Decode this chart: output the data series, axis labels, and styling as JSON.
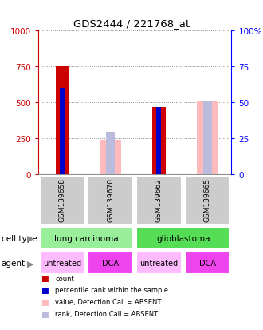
{
  "title": "GDS2444 / 221768_at",
  "samples": [
    "GSM139658",
    "GSM139670",
    "GSM139662",
    "GSM139665"
  ],
  "count_values": [
    750,
    null,
    470,
    null
  ],
  "percentile_values": [
    600,
    null,
    470,
    null
  ],
  "absent_value_values": [
    null,
    240,
    null,
    510
  ],
  "absent_rank_values": [
    null,
    295,
    null,
    510
  ],
  "ylim": [
    0,
    1000
  ],
  "yticks_left": [
    0,
    250,
    500,
    750,
    1000
  ],
  "yticks_right": [
    0,
    25,
    50,
    75,
    100
  ],
  "color_count": "#cc0000",
  "color_percentile": "#0000cc",
  "color_absent_value": "#ffbbbb",
  "color_absent_rank": "#bbbbdd",
  "cell_type_groups": [
    {
      "label": "lung carcinoma",
      "cols": [
        0,
        1
      ],
      "color": "#99ee99"
    },
    {
      "label": "glioblastoma",
      "cols": [
        2,
        3
      ],
      "color": "#55dd55"
    }
  ],
  "agent_groups": [
    {
      "label": "untreated",
      "col": 0,
      "color": "#ffbbff"
    },
    {
      "label": "DCA",
      "col": 1,
      "color": "#ee44ee"
    },
    {
      "label": "untreated",
      "col": 2,
      "color": "#ffbbff"
    },
    {
      "label": "DCA",
      "col": 3,
      "color": "#ee44ee"
    }
  ],
  "legend_items": [
    {
      "label": "count",
      "color": "#cc0000"
    },
    {
      "label": "percentile rank within the sample",
      "color": "#0000cc"
    },
    {
      "label": "value, Detection Call = ABSENT",
      "color": "#ffbbbb"
    },
    {
      "label": "rank, Detection Call = ABSENT",
      "color": "#bbbbdd"
    }
  ],
  "sample_box_color": "#cccccc",
  "cell_type_label": "cell type",
  "agent_label": "agent"
}
